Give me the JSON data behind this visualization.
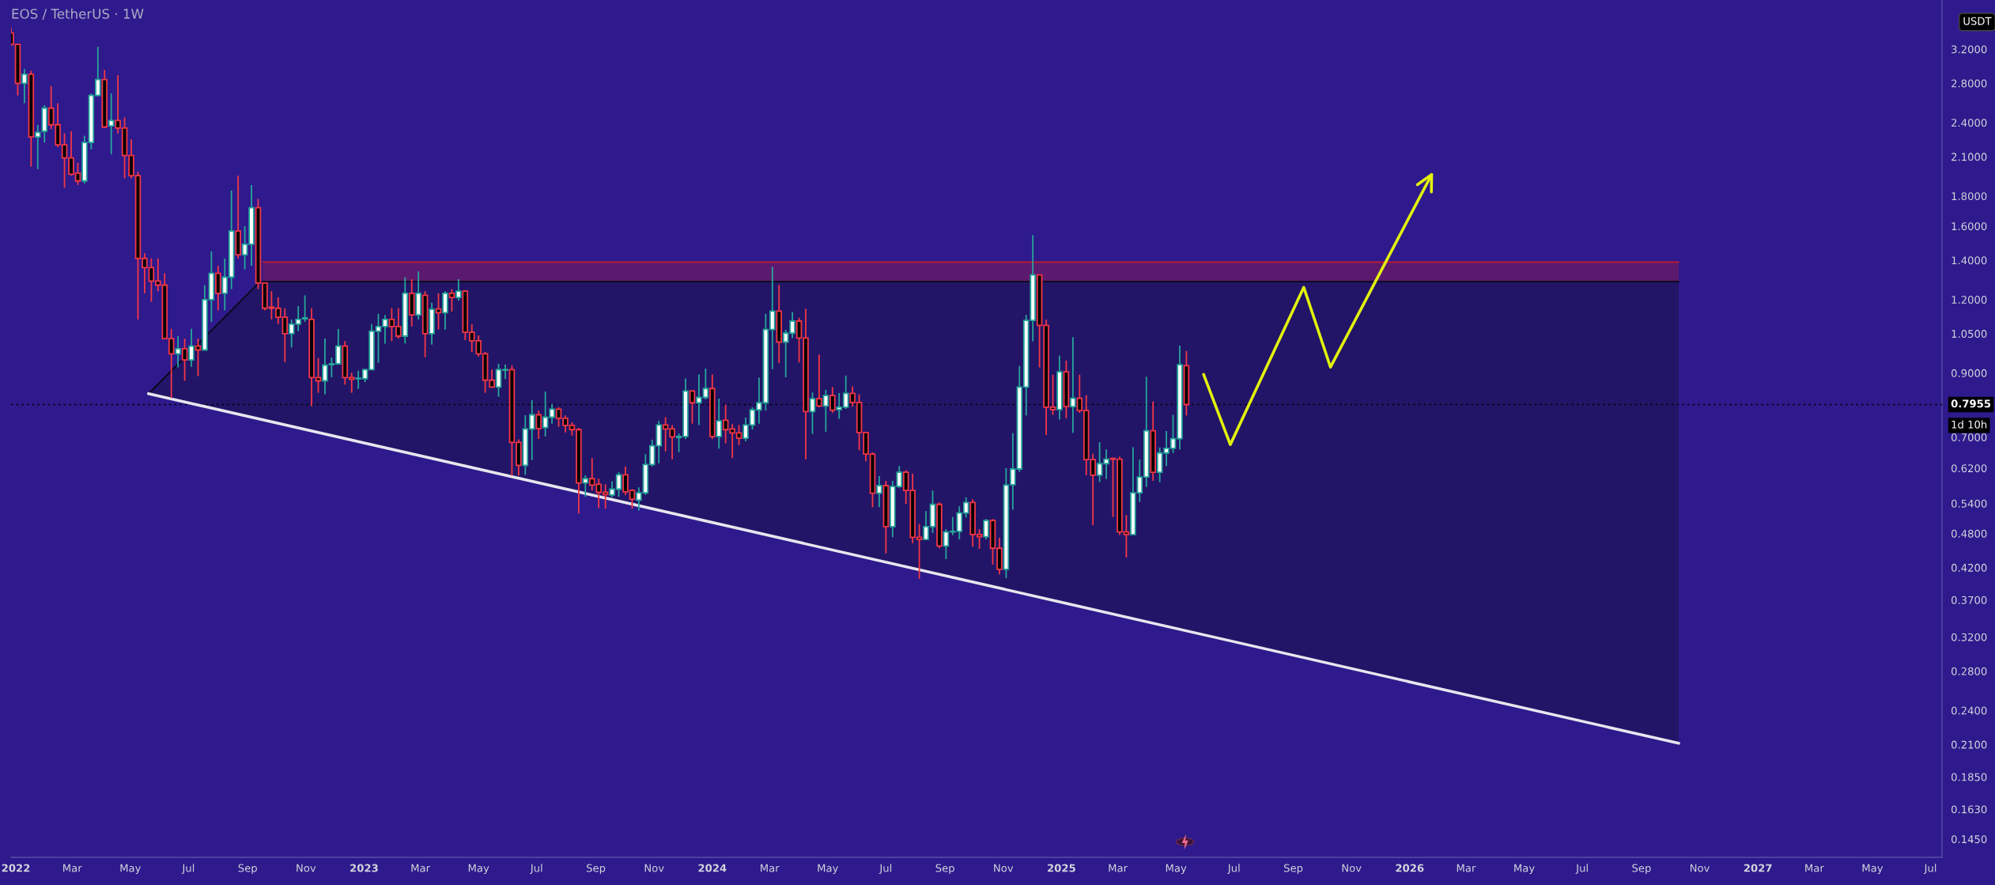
{
  "chart_data": {
    "type": "candlestick",
    "title": "EOS / TetherUS · 1W",
    "ylabel": "USDT",
    "log": true,
    "x": [
      "2021-12-27",
      "2022-01-03",
      "2022-01-10",
      "2022-01-17",
      "2022-01-24",
      "2022-01-31",
      "2022-02-07",
      "2022-02-14",
      "2022-02-21",
      "2022-02-28",
      "2022-03-07",
      "2022-03-14",
      "2022-03-21",
      "2022-03-28",
      "2022-04-04",
      "2022-04-11",
      "2022-04-18",
      "2022-04-25",
      "2022-05-02",
      "2022-05-09",
      "2022-05-16",
      "2022-05-23",
      "2022-05-30",
      "2022-06-06",
      "2022-06-13",
      "2022-06-20",
      "2022-06-27",
      "2022-07-04",
      "2022-07-11",
      "2022-07-18",
      "2022-07-25",
      "2022-08-01",
      "2022-08-08",
      "2022-08-15",
      "2022-08-22",
      "2022-08-29",
      "2022-09-05",
      "2022-09-12",
      "2022-09-19",
      "2022-09-26",
      "2022-10-03",
      "2022-10-10",
      "2022-10-17",
      "2022-10-24",
      "2022-10-31",
      "2022-11-07",
      "2022-11-14",
      "2022-11-21",
      "2022-11-28",
      "2022-12-05",
      "2022-12-12",
      "2022-12-19",
      "2022-12-26",
      "2023-01-02",
      "2023-01-09",
      "2023-01-16",
      "2023-01-23",
      "2023-01-30",
      "2023-02-06",
      "2023-02-13",
      "2023-02-20",
      "2023-02-27",
      "2023-03-06",
      "2023-03-13",
      "2023-03-20",
      "2023-03-27",
      "2023-04-03",
      "2023-04-10",
      "2023-04-17",
      "2023-04-24",
      "2023-05-01",
      "2023-05-08",
      "2023-05-15",
      "2023-05-22",
      "2023-05-29",
      "2023-06-05",
      "2023-06-12",
      "2023-06-19",
      "2023-06-26",
      "2023-07-03",
      "2023-07-10",
      "2023-07-17",
      "2023-07-24",
      "2023-07-31",
      "2023-08-07",
      "2023-08-14",
      "2023-08-21",
      "2023-08-28",
      "2023-09-04",
      "2023-09-11",
      "2023-09-18",
      "2023-09-25",
      "2023-10-02",
      "2023-10-09",
      "2023-10-16",
      "2023-10-23",
      "2023-10-30",
      "2023-11-06",
      "2023-11-13",
      "2023-11-20",
      "2023-11-27",
      "2023-12-04",
      "2023-12-11",
      "2023-12-18",
      "2023-12-25",
      "2024-01-01",
      "2024-01-08",
      "2024-01-15",
      "2024-01-22",
      "2024-01-29",
      "2024-02-05",
      "2024-02-12",
      "2024-02-19",
      "2024-02-26",
      "2024-03-04",
      "2024-03-11",
      "2024-03-18",
      "2024-03-25",
      "2024-04-01",
      "2024-04-08",
      "2024-04-15",
      "2024-04-22",
      "2024-04-29",
      "2024-05-06",
      "2024-05-13",
      "2024-05-20",
      "2024-05-27",
      "2024-06-03",
      "2024-06-10",
      "2024-06-17",
      "2024-06-24",
      "2024-07-01",
      "2024-07-08",
      "2024-07-15",
      "2024-07-22",
      "2024-07-29",
      "2024-08-05",
      "2024-08-12",
      "2024-08-19",
      "2024-08-26",
      "2024-09-02",
      "2024-09-09",
      "2024-09-16",
      "2024-09-23",
      "2024-09-30",
      "2024-10-07",
      "2024-10-14",
      "2024-10-21",
      "2024-10-28",
      "2024-11-04",
      "2024-11-11",
      "2024-11-18",
      "2024-11-25",
      "2024-12-02",
      "2024-12-09",
      "2024-12-16",
      "2024-12-23",
      "2024-12-30",
      "2025-01-06",
      "2025-01-13",
      "2025-01-20",
      "2025-01-27",
      "2025-02-03",
      "2025-02-10",
      "2025-02-17",
      "2025-02-24",
      "2025-03-03",
      "2025-03-10",
      "2025-03-17",
      "2025-03-24",
      "2025-03-31",
      "2025-04-07",
      "2025-04-14",
      "2025-04-21",
      "2025-04-28",
      "2025-05-05",
      "2025-05-12"
    ],
    "ohlc": [
      [
        3.41,
        3.48,
        3.24,
        3.26
      ],
      [
        3.26,
        3.26,
        2.67,
        2.8
      ],
      [
        2.8,
        2.96,
        2.59,
        2.9
      ],
      [
        2.9,
        2.94,
        2.02,
        2.27
      ],
      [
        2.27,
        2.38,
        2.0,
        2.31
      ],
      [
        2.32,
        2.57,
        2.22,
        2.54
      ],
      [
        2.54,
        2.77,
        2.34,
        2.38
      ],
      [
        2.38,
        2.59,
        2.18,
        2.2
      ],
      [
        2.2,
        2.3,
        1.86,
        2.09
      ],
      [
        2.09,
        2.32,
        1.95,
        1.96
      ],
      [
        1.97,
        2.05,
        1.88,
        1.91
      ],
      [
        1.91,
        2.28,
        1.89,
        2.22
      ],
      [
        2.22,
        2.69,
        2.16,
        2.67
      ],
      [
        2.67,
        3.23,
        2.66,
        2.84
      ],
      [
        2.84,
        2.95,
        2.35,
        2.36
      ],
      [
        2.37,
        2.69,
        2.12,
        2.42
      ],
      [
        2.42,
        2.89,
        2.3,
        2.35
      ],
      [
        2.35,
        2.45,
        1.93,
        2.11
      ],
      [
        2.11,
        2.25,
        1.93,
        1.95
      ],
      [
        1.95,
        1.98,
        1.11,
        1.41
      ],
      [
        1.41,
        1.44,
        1.23,
        1.36
      ],
      [
        1.36,
        1.41,
        1.19,
        1.29
      ],
      [
        1.29,
        1.41,
        1.24,
        1.27
      ],
      [
        1.27,
        1.33,
        1.03,
        1.03
      ],
      [
        1.03,
        1.07,
        0.816,
        0.97
      ],
      [
        0.97,
        1.04,
        0.92,
        0.99
      ],
      [
        0.99,
        1.03,
        0.873,
        0.947
      ],
      [
        0.947,
        1.07,
        0.922,
        1.0
      ],
      [
        1.0,
        1.03,
        0.889,
        0.985
      ],
      [
        0.985,
        1.27,
        0.985,
        1.2
      ],
      [
        1.2,
        1.45,
        1.1,
        1.33
      ],
      [
        1.33,
        1.37,
        1.15,
        1.23
      ],
      [
        1.23,
        1.41,
        1.15,
        1.31
      ],
      [
        1.31,
        1.84,
        1.25,
        1.57
      ],
      [
        1.57,
        1.95,
        1.41,
        1.43
      ],
      [
        1.43,
        1.6,
        1.35,
        1.49
      ],
      [
        1.49,
        1.88,
        1.37,
        1.72
      ],
      [
        1.72,
        1.78,
        1.25,
        1.28
      ],
      [
        1.28,
        1.28,
        1.15,
        1.16
      ],
      [
        1.165,
        1.24,
        1.11,
        1.16
      ],
      [
        1.16,
        1.21,
        1.09,
        1.12
      ],
      [
        1.12,
        1.16,
        0.939,
        1.05
      ],
      [
        1.05,
        1.11,
        0.995,
        1.09
      ],
      [
        1.09,
        1.17,
        1.06,
        1.11
      ],
      [
        1.113,
        1.22,
        1.1,
        1.117
      ],
      [
        1.11,
        1.16,
        0.79,
        0.884
      ],
      [
        0.884,
        0.954,
        0.833,
        0.873
      ],
      [
        0.873,
        1.03,
        0.828,
        0.928
      ],
      [
        0.93,
        0.956,
        0.885,
        0.933
      ],
      [
        0.933,
        1.07,
        0.93,
        1.0
      ],
      [
        1.0,
        1.02,
        0.86,
        0.884
      ],
      [
        0.884,
        0.901,
        0.833,
        0.878
      ],
      [
        0.88,
        0.908,
        0.846,
        0.882
      ],
      [
        0.88,
        0.915,
        0.868,
        0.912
      ],
      [
        0.912,
        1.09,
        0.911,
        1.06
      ],
      [
        1.06,
        1.135,
        0.937,
        1.08
      ],
      [
        1.08,
        1.13,
        1.01,
        1.11
      ],
      [
        1.11,
        1.16,
        1.02,
        1.08
      ],
      [
        1.08,
        1.16,
        1.03,
        1.04
      ],
      [
        1.04,
        1.31,
        1.01,
        1.23
      ],
      [
        1.23,
        1.3,
        1.08,
        1.13
      ],
      [
        1.13,
        1.34,
        1.11,
        1.23
      ],
      [
        1.22,
        1.24,
        0.957,
        1.05
      ],
      [
        1.05,
        1.185,
        1.006,
        1.155
      ],
      [
        1.157,
        1.23,
        1.067,
        1.14
      ],
      [
        1.14,
        1.24,
        1.067,
        1.23
      ],
      [
        1.23,
        1.25,
        1.145,
        1.21
      ],
      [
        1.21,
        1.3,
        1.195,
        1.24
      ],
      [
        1.24,
        1.245,
        1.024,
        1.056
      ],
      [
        1.056,
        1.089,
        0.977,
        1.021
      ],
      [
        1.021,
        1.043,
        0.96,
        0.97
      ],
      [
        0.97,
        0.978,
        0.833,
        0.875
      ],
      [
        0.875,
        0.912,
        0.849,
        0.852
      ],
      [
        0.852,
        0.933,
        0.82,
        0.912
      ],
      [
        0.91,
        0.93,
        0.879,
        0.912
      ],
      [
        0.912,
        0.927,
        0.602,
        0.686
      ],
      [
        0.686,
        0.694,
        0.602,
        0.627
      ],
      [
        0.627,
        0.763,
        0.604,
        0.723
      ],
      [
        0.723,
        0.809,
        0.64,
        0.764
      ],
      [
        0.764,
        0.777,
        0.695,
        0.724
      ],
      [
        0.727,
        0.837,
        0.702,
        0.757
      ],
      [
        0.757,
        0.797,
        0.738,
        0.781
      ],
      [
        0.781,
        0.787,
        0.729,
        0.754
      ],
      [
        0.754,
        0.762,
        0.713,
        0.733
      ],
      [
        0.733,
        0.742,
        0.704,
        0.721
      ],
      [
        0.721,
        0.726,
        0.519,
        0.585
      ],
      [
        0.585,
        0.603,
        0.554,
        0.595
      ],
      [
        0.595,
        0.645,
        0.568,
        0.58
      ],
      [
        0.582,
        0.595,
        0.53,
        0.564
      ],
      [
        0.564,
        0.582,
        0.529,
        0.559
      ],
      [
        0.558,
        0.589,
        0.553,
        0.571
      ],
      [
        0.571,
        0.61,
        0.554,
        0.604
      ],
      [
        0.604,
        0.624,
        0.558,
        0.565
      ],
      [
        0.568,
        0.571,
        0.529,
        0.549
      ],
      [
        0.547,
        0.575,
        0.525,
        0.563
      ],
      [
        0.563,
        0.655,
        0.558,
        0.629
      ],
      [
        0.629,
        0.693,
        0.624,
        0.677
      ],
      [
        0.677,
        0.746,
        0.632,
        0.734
      ],
      [
        0.734,
        0.757,
        0.662,
        0.723
      ],
      [
        0.723,
        0.734,
        0.642,
        0.701
      ],
      [
        0.699,
        0.71,
        0.66,
        0.702
      ],
      [
        0.702,
        0.881,
        0.695,
        0.839
      ],
      [
        0.839,
        0.841,
        0.738,
        0.801
      ],
      [
        0.801,
        0.895,
        0.734,
        0.818
      ],
      [
        0.818,
        0.916,
        0.812,
        0.847
      ],
      [
        0.847,
        0.895,
        0.695,
        0.702
      ],
      [
        0.702,
        0.814,
        0.669,
        0.746
      ],
      [
        0.748,
        0.795,
        0.683,
        0.721
      ],
      [
        0.723,
        0.737,
        0.645,
        0.712
      ],
      [
        0.712,
        0.734,
        0.679,
        0.697
      ],
      [
        0.697,
        0.756,
        0.689,
        0.734
      ],
      [
        0.734,
        0.787,
        0.721,
        0.779
      ],
      [
        0.779,
        0.884,
        0.738,
        0.801
      ],
      [
        0.801,
        1.135,
        0.777,
        1.067
      ],
      [
        1.067,
        1.364,
        0.914,
        1.147
      ],
      [
        1.147,
        1.271,
        0.936,
        1.016
      ],
      [
        1.016,
        1.066,
        0.885,
        1.052
      ],
      [
        1.052,
        1.143,
        1.032,
        1.103
      ],
      [
        1.103,
        1.118,
        0.938,
        1.032
      ],
      [
        1.032,
        1.157,
        0.642,
        0.774
      ],
      [
        0.774,
        0.834,
        0.709,
        0.814
      ],
      [
        0.814,
        0.968,
        0.787,
        0.791
      ],
      [
        0.791,
        0.843,
        0.715,
        0.824
      ],
      [
        0.824,
        0.852,
        0.77,
        0.778
      ],
      [
        0.78,
        0.832,
        0.752,
        0.787
      ],
      [
        0.787,
        0.891,
        0.782,
        0.831
      ],
      [
        0.831,
        0.854,
        0.789,
        0.802
      ],
      [
        0.802,
        0.828,
        0.665,
        0.713
      ],
      [
        0.713,
        0.713,
        0.637,
        0.655
      ],
      [
        0.655,
        0.66,
        0.532,
        0.562
      ],
      [
        0.562,
        0.601,
        0.532,
        0.579
      ],
      [
        0.579,
        0.59,
        0.444,
        0.493
      ],
      [
        0.493,
        0.59,
        0.473,
        0.577
      ],
      [
        0.577,
        0.625,
        0.574,
        0.61
      ],
      [
        0.61,
        0.615,
        0.539,
        0.568
      ],
      [
        0.568,
        0.607,
        0.462,
        0.473
      ],
      [
        0.473,
        0.498,
        0.402,
        0.469
      ],
      [
        0.469,
        0.524,
        0.469,
        0.493
      ],
      [
        0.493,
        0.568,
        0.481,
        0.538
      ],
      [
        0.538,
        0.542,
        0.453,
        0.457
      ],
      [
        0.457,
        0.488,
        0.434,
        0.483
      ],
      [
        0.483,
        0.512,
        0.477,
        0.484
      ],
      [
        0.484,
        0.534,
        0.469,
        0.52
      ],
      [
        0.52,
        0.553,
        0.511,
        0.542
      ],
      [
        0.542,
        0.549,
        0.456,
        0.478
      ],
      [
        0.478,
        0.488,
        0.452,
        0.474
      ],
      [
        0.474,
        0.508,
        0.469,
        0.505
      ],
      [
        0.505,
        0.508,
        0.425,
        0.453
      ],
      [
        0.453,
        0.472,
        0.409,
        0.417
      ],
      [
        0.417,
        0.62,
        0.403,
        0.58
      ],
      [
        0.581,
        0.711,
        0.527,
        0.618
      ],
      [
        0.618,
        0.925,
        0.611,
        0.852
      ],
      [
        0.852,
        1.13,
        0.762,
        1.106
      ],
      [
        1.106,
        1.545,
        1.019,
        1.322
      ],
      [
        1.322,
        1.322,
        0.92,
        1.085
      ],
      [
        1.085,
        1.109,
        0.706,
        0.787
      ],
      [
        0.787,
        0.894,
        0.764,
        0.78
      ],
      [
        0.78,
        0.963,
        0.75,
        0.904
      ],
      [
        0.904,
        0.945,
        0.754,
        0.789
      ],
      [
        0.789,
        1.036,
        0.712,
        0.815
      ],
      [
        0.815,
        0.894,
        0.77,
        0.777
      ],
      [
        0.777,
        0.825,
        0.603,
        0.641
      ],
      [
        0.641,
        0.656,
        0.496,
        0.603
      ],
      [
        0.603,
        0.686,
        0.587,
        0.631
      ],
      [
        0.631,
        0.667,
        0.594,
        0.642
      ],
      [
        0.644,
        0.646,
        0.512,
        0.642
      ],
      [
        0.642,
        0.649,
        0.477,
        0.483
      ],
      [
        0.483,
        0.516,
        0.437,
        0.478
      ],
      [
        0.478,
        0.673,
        0.478,
        0.563
      ],
      [
        0.563,
        0.641,
        0.543,
        0.599
      ],
      [
        0.599,
        0.887,
        0.576,
        0.718
      ],
      [
        0.718,
        0.805,
        0.59,
        0.61
      ],
      [
        0.61,
        0.672,
        0.587,
        0.658
      ],
      [
        0.658,
        0.717,
        0.625,
        0.67
      ],
      [
        0.67,
        0.764,
        0.658,
        0.696
      ],
      [
        0.696,
        1.002,
        0.667,
        0.93
      ],
      [
        0.926,
        0.981,
        0.762,
        0.7955
      ]
    ],
    "series": [
      {
        "type": "line",
        "x": [
          "2022-05-20",
          "2022-09-14",
          "2026-10-10"
        ],
        "values": [
          0.83,
          1.287,
          1.287
        ],
        "lower": [
          0.83,
          0.751,
          0.211
        ],
        "upper": [
          0.83,
          1.287,
          1.287
        ],
        "color": "#060911"
      },
      {
        "type": "line",
        "x": [
          "2022-09-17",
          "2026-10-10"
        ],
        "values": [
          1.39,
          1.39
        ],
        "lower": [
          1.287,
          1.287
        ],
        "upper": [
          1.39,
          1.39
        ],
        "color": "#c71a28"
      },
      {
        "type": "line",
        "x": [
          "2022-05-20",
          "2026-10-10"
        ],
        "values": [
          0.83,
          0.211
        ],
        "color": "#e6e6ee"
      },
      {
        "type": "line",
        "x": [
          "2025-05-30",
          "2025-06-27",
          "2025-09-12",
          "2025-10-10",
          "2026-01-24"
        ],
        "values": [
          0.895,
          0.68,
          1.259,
          0.921,
          1.958
        ],
        "color": "#e2f20c"
      }
    ],
    "ref_lines": [
      {
        "axis": "y",
        "value": 0.7955,
        "label": "0.7955",
        "color": "#000000",
        "line_style": "dotted"
      }
    ],
    "annotations": [
      "1d 10h"
    ],
    "xlim": [
      "2021-12-27",
      "2027-07-13"
    ],
    "xticks": [
      {
        "value": "2022-01-01",
        "label": "2022"
      },
      {
        "value": "2022-03-01",
        "label": "Mar"
      },
      {
        "value": "2022-05-01",
        "label": "May"
      },
      {
        "value": "2022-07-01",
        "label": "Jul"
      },
      {
        "value": "2022-09-01",
        "label": "Sep"
      },
      {
        "value": "2022-11-01",
        "label": "Nov"
      },
      {
        "value": "2023-01-01",
        "label": "2023"
      },
      {
        "value": "2023-03-01",
        "label": "Mar"
      },
      {
        "value": "2023-05-01",
        "label": "May"
      },
      {
        "value": "2023-07-01",
        "label": "Jul"
      },
      {
        "value": "2023-09-01",
        "label": "Sep"
      },
      {
        "value": "2023-11-01",
        "label": "Nov"
      },
      {
        "value": "2024-01-01",
        "label": "2024"
      },
      {
        "value": "2024-03-01",
        "label": "Mar"
      },
      {
        "value": "2024-05-01",
        "label": "May"
      },
      {
        "value": "2024-07-01",
        "label": "Jul"
      },
      {
        "value": "2024-09-01",
        "label": "Sep"
      },
      {
        "value": "2024-11-01",
        "label": "Nov"
      },
      {
        "value": "2025-01-01",
        "label": "2025"
      },
      {
        "value": "2025-03-01",
        "label": "Mar"
      },
      {
        "value": "2025-05-01",
        "label": "May"
      },
      {
        "value": "2025-07-01",
        "label": "Jul"
      },
      {
        "value": "2025-09-01",
        "label": "Sep"
      },
      {
        "value": "2025-11-01",
        "label": "Nov"
      },
      {
        "value": "2026-01-01",
        "label": "2026"
      },
      {
        "value": "2026-03-01",
        "label": "Mar"
      },
      {
        "value": "2026-05-01",
        "label": "May"
      },
      {
        "value": "2026-07-01",
        "label": "Jul"
      },
      {
        "value": "2026-09-01",
        "label": "Sep"
      },
      {
        "value": "2026-11-01",
        "label": "Nov"
      },
      {
        "value": "2027-01-01",
        "label": "2027"
      },
      {
        "value": "2027-03-01",
        "label": "Mar"
      },
      {
        "value": "2027-05-01",
        "label": "May"
      },
      {
        "value": "2027-07-01",
        "label": "Jul"
      }
    ],
    "ylim": [
      0.135,
      3.88
    ],
    "yticks": [
      {
        "value": 3.2,
        "label": "3.2000"
      },
      {
        "value": 2.8,
        "label": "2.8000"
      },
      {
        "value": 2.4,
        "label": "2.4000"
      },
      {
        "value": 2.1,
        "label": "2.1000"
      },
      {
        "value": 1.8,
        "label": "1.8000"
      },
      {
        "value": 1.6,
        "label": "1.6000"
      },
      {
        "value": 1.4,
        "label": "1.4000"
      },
      {
        "value": 1.2,
        "label": "1.2000"
      },
      {
        "value": 1.05,
        "label": "1.0500"
      },
      {
        "value": 0.9,
        "label": "0.9000"
      },
      {
        "value": 0.7,
        "label": "0.7000"
      },
      {
        "value": 0.62,
        "label": "0.6200"
      },
      {
        "value": 0.54,
        "label": "0.5400"
      },
      {
        "value": 0.48,
        "label": "0.4800"
      },
      {
        "value": 0.42,
        "label": "0.4200"
      },
      {
        "value": 0.37,
        "label": "0.3700"
      },
      {
        "value": 0.32,
        "label": "0.3200"
      },
      {
        "value": 0.28,
        "label": "0.2800"
      },
      {
        "value": 0.24,
        "label": "0.2400"
      },
      {
        "value": 0.21,
        "label": "0.2100"
      },
      {
        "value": 0.185,
        "label": "0.1850"
      },
      {
        "value": 0.163,
        "label": "0.1630"
      },
      {
        "value": 0.145,
        "label": "0.1450"
      }
    ]
  }
}
